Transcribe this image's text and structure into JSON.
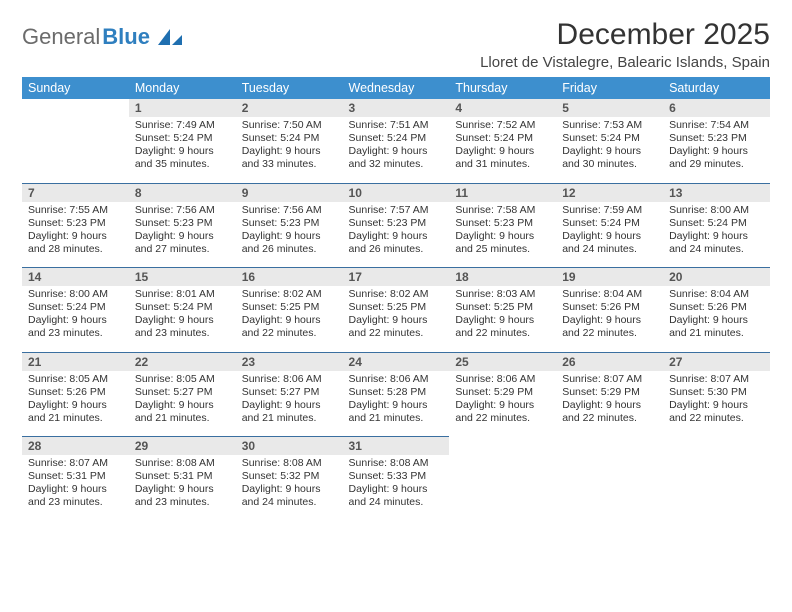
{
  "logo": {
    "word1": "General",
    "word2": "Blue"
  },
  "title": {
    "month": "December 2025",
    "location": "Lloret de Vistalegre, Balearic Islands, Spain"
  },
  "colors": {
    "header_bg": "#3d8fce",
    "header_text": "#ffffff",
    "daynum_bg": "#e9e9e9",
    "daynum_text": "#555555",
    "week_divider": "#3a6fa0",
    "body_text": "#333333",
    "logo_gray": "#6b6b6b",
    "logo_blue": "#2f7fbf",
    "background": "#ffffff"
  },
  "typography": {
    "title_fontsize": 30,
    "location_fontsize": 15,
    "header_fontsize": 12.5,
    "daynum_fontsize": 12,
    "cell_fontsize": 10.5
  },
  "weekdays": [
    "Sunday",
    "Monday",
    "Tuesday",
    "Wednesday",
    "Thursday",
    "Friday",
    "Saturday"
  ],
  "weeks": [
    {
      "days": [
        null,
        {
          "n": "1",
          "sr": "7:49 AM",
          "ss": "5:24 PM",
          "dl": "9 hours and 35 minutes."
        },
        {
          "n": "2",
          "sr": "7:50 AM",
          "ss": "5:24 PM",
          "dl": "9 hours and 33 minutes."
        },
        {
          "n": "3",
          "sr": "7:51 AM",
          "ss": "5:24 PM",
          "dl": "9 hours and 32 minutes."
        },
        {
          "n": "4",
          "sr": "7:52 AM",
          "ss": "5:24 PM",
          "dl": "9 hours and 31 minutes."
        },
        {
          "n": "5",
          "sr": "7:53 AM",
          "ss": "5:24 PM",
          "dl": "9 hours and 30 minutes."
        },
        {
          "n": "6",
          "sr": "7:54 AM",
          "ss": "5:23 PM",
          "dl": "9 hours and 29 minutes."
        }
      ]
    },
    {
      "days": [
        {
          "n": "7",
          "sr": "7:55 AM",
          "ss": "5:23 PM",
          "dl": "9 hours and 28 minutes."
        },
        {
          "n": "8",
          "sr": "7:56 AM",
          "ss": "5:23 PM",
          "dl": "9 hours and 27 minutes."
        },
        {
          "n": "9",
          "sr": "7:56 AM",
          "ss": "5:23 PM",
          "dl": "9 hours and 26 minutes."
        },
        {
          "n": "10",
          "sr": "7:57 AM",
          "ss": "5:23 PM",
          "dl": "9 hours and 26 minutes."
        },
        {
          "n": "11",
          "sr": "7:58 AM",
          "ss": "5:23 PM",
          "dl": "9 hours and 25 minutes."
        },
        {
          "n": "12",
          "sr": "7:59 AM",
          "ss": "5:24 PM",
          "dl": "9 hours and 24 minutes."
        },
        {
          "n": "13",
          "sr": "8:00 AM",
          "ss": "5:24 PM",
          "dl": "9 hours and 24 minutes."
        }
      ]
    },
    {
      "days": [
        {
          "n": "14",
          "sr": "8:00 AM",
          "ss": "5:24 PM",
          "dl": "9 hours and 23 minutes."
        },
        {
          "n": "15",
          "sr": "8:01 AM",
          "ss": "5:24 PM",
          "dl": "9 hours and 23 minutes."
        },
        {
          "n": "16",
          "sr": "8:02 AM",
          "ss": "5:25 PM",
          "dl": "9 hours and 22 minutes."
        },
        {
          "n": "17",
          "sr": "8:02 AM",
          "ss": "5:25 PM",
          "dl": "9 hours and 22 minutes."
        },
        {
          "n": "18",
          "sr": "8:03 AM",
          "ss": "5:25 PM",
          "dl": "9 hours and 22 minutes."
        },
        {
          "n": "19",
          "sr": "8:04 AM",
          "ss": "5:26 PM",
          "dl": "9 hours and 22 minutes."
        },
        {
          "n": "20",
          "sr": "8:04 AM",
          "ss": "5:26 PM",
          "dl": "9 hours and 21 minutes."
        }
      ]
    },
    {
      "days": [
        {
          "n": "21",
          "sr": "8:05 AM",
          "ss": "5:26 PM",
          "dl": "9 hours and 21 minutes."
        },
        {
          "n": "22",
          "sr": "8:05 AM",
          "ss": "5:27 PM",
          "dl": "9 hours and 21 minutes."
        },
        {
          "n": "23",
          "sr": "8:06 AM",
          "ss": "5:27 PM",
          "dl": "9 hours and 21 minutes."
        },
        {
          "n": "24",
          "sr": "8:06 AM",
          "ss": "5:28 PM",
          "dl": "9 hours and 21 minutes."
        },
        {
          "n": "25",
          "sr": "8:06 AM",
          "ss": "5:29 PM",
          "dl": "9 hours and 22 minutes."
        },
        {
          "n": "26",
          "sr": "8:07 AM",
          "ss": "5:29 PM",
          "dl": "9 hours and 22 minutes."
        },
        {
          "n": "27",
          "sr": "8:07 AM",
          "ss": "5:30 PM",
          "dl": "9 hours and 22 minutes."
        }
      ]
    },
    {
      "days": [
        {
          "n": "28",
          "sr": "8:07 AM",
          "ss": "5:31 PM",
          "dl": "9 hours and 23 minutes."
        },
        {
          "n": "29",
          "sr": "8:08 AM",
          "ss": "5:31 PM",
          "dl": "9 hours and 23 minutes."
        },
        {
          "n": "30",
          "sr": "8:08 AM",
          "ss": "5:32 PM",
          "dl": "9 hours and 24 minutes."
        },
        {
          "n": "31",
          "sr": "8:08 AM",
          "ss": "5:33 PM",
          "dl": "9 hours and 24 minutes."
        },
        null,
        null,
        null
      ]
    }
  ],
  "labels": {
    "sunrise": "Sunrise:",
    "sunset": "Sunset:",
    "daylight": "Daylight:"
  }
}
